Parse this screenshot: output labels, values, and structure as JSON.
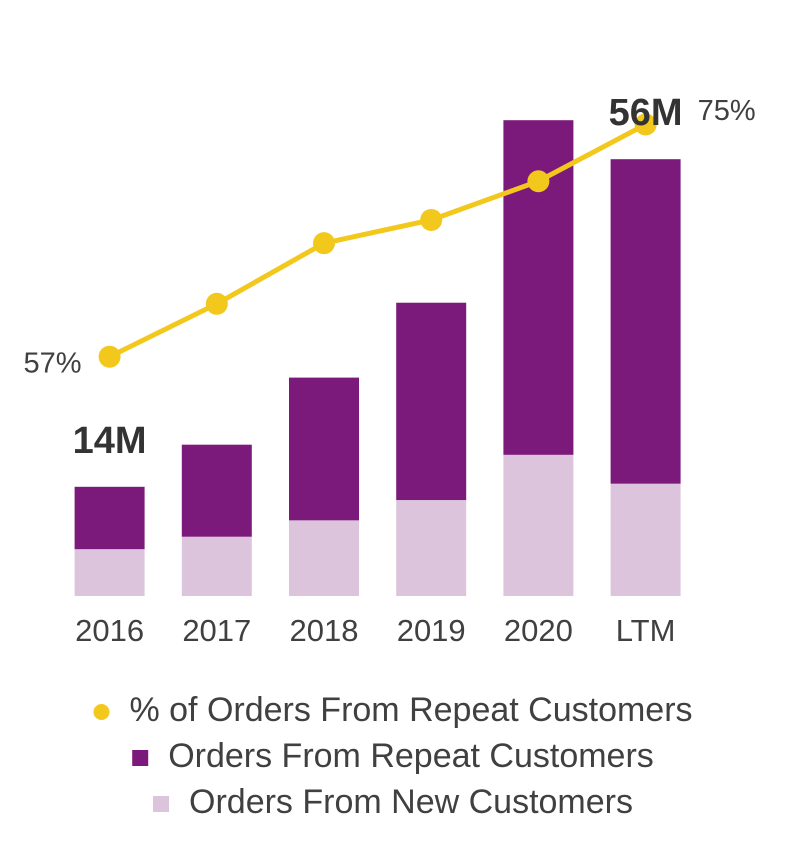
{
  "chart_data": {
    "type": "bar",
    "categories": [
      "2016",
      "2017",
      "2018",
      "2019",
      "2020",
      "LTM"
    ],
    "stacked": true,
    "series": [
      {
        "name": "Orders From New Customers",
        "type": "bar",
        "color": "#dcc5dc",
        "values": [
          6.0,
          7.6,
          9.7,
          12.3,
          18.1,
          14.4
        ]
      },
      {
        "name": "Orders From Repeat Customers",
        "type": "bar",
        "color": "#7b1a7a",
        "values": [
          8.0,
          11.8,
          18.3,
          25.3,
          42.9,
          41.6
        ]
      },
      {
        "name": "% of Orders From Repeat Customers",
        "type": "line",
        "axis": "y2",
        "color": "#f2c81c",
        "values": [
          57,
          61.1,
          65.8,
          67.6,
          70.6,
          75
        ],
        "value_labels": [
          "57%",
          null,
          null,
          null,
          null,
          "75%"
        ]
      }
    ],
    "annotations": [
      {
        "text": "14M",
        "value": 14,
        "category": "2016"
      },
      {
        "text": "56M",
        "value": 56,
        "category": "LTM"
      }
    ],
    "ylim": [
      0,
      65
    ],
    "y2lim": [
      50,
      80
    ],
    "legend": "bottom"
  }
}
